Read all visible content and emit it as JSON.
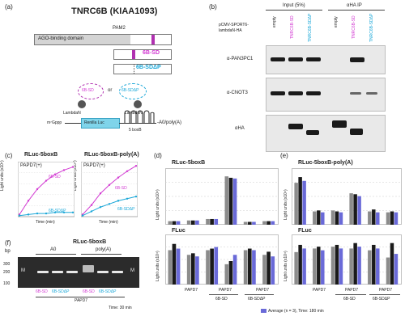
{
  "panel_a": {
    "label": "(a)",
    "title": "TNRC6B (KIAA1093)",
    "domain_label": "AGO-binding domain",
    "pam2_label": "PAM2",
    "construct_6b_sd": "6B-SD",
    "construct_6b_sdap": "6B-SDΔP",
    "tether_left": "6B-SD",
    "tether_or": "or",
    "tether_right": "6B-SDΔP",
    "lambdan_left": "LambdaN",
    "lambdan_right": "LambdaN",
    "boxb_label": "5 boxB",
    "cap_label": "m⁷Gppp",
    "rluc_label": "Renilla Luc",
    "polya_label": "-A0/poly(A)"
  },
  "panel_b": {
    "label": "(b)",
    "input_label": "Input (5%)",
    "ip_label": "αHA IP",
    "vector_label": "pCMV-SPORT6-lambdaN-HA",
    "lanes": [
      "empty",
      "TNRC6B-SD",
      "TNRC6B-SDΔP",
      "empty",
      "TNRC6B-SD",
      "TNRC6B-SDΔP"
    ],
    "blots": [
      "α-PAN3PC1",
      "α-CNOT3",
      "αHA"
    ]
  },
  "panel_c": {
    "label": "(c)",
    "left_title": "RLuc-5boxB",
    "right_title": "RLuc-5boxB-poly(A)",
    "papd7": "PAPD7(+)",
    "series_sd": "6B-SD",
    "series_sdap": "6B-SDΔP",
    "ylabel": "Light units (x10⁵)",
    "xlabel": "Time (min)"
  },
  "panel_d": {
    "label": "(d)",
    "top_title": "RLuc-5boxB",
    "bottom_title": "FLuc",
    "ylabel_top": "Light units (x10⁴)",
    "ylabel_bottom": "Light units (x10⁴)",
    "group_labels": [
      "PAPD7",
      "PAPD7",
      "PAPD7"
    ],
    "construct_labels": [
      "6B-SD",
      "6B-SDΔP"
    ],
    "legend": "Average (n = 3), Time: 180 min"
  },
  "panel_e": {
    "label": "(e)",
    "top_title": "RLuc-5boxB-poly(A)",
    "bottom_title": "FLuc",
    "ylabel_top": "Light units (x10⁴)",
    "ylabel_bottom": "Light units (x10⁴)",
    "group_labels": [
      "PAPD7",
      "PAPD7",
      "PAPD7"
    ],
    "construct_labels": [
      "6B-SD",
      "6B-SDΔP"
    ]
  },
  "panel_f": {
    "label": "(f)",
    "title": "RLuc-5boxB",
    "a0": "A0",
    "polya": "poly(A)",
    "m_left": "M",
    "m_right": "M",
    "bp": "bp",
    "markers": [
      "300",
      "200",
      "100"
    ],
    "sd_left": "6B-SD",
    "sdap_left": "6B-SDΔP",
    "sd_right": "6B-SD",
    "sdap_right": "6B-SDΔP",
    "papd7": "PAPD7",
    "time": "Time: 30 min"
  },
  "colors": {
    "magenta": "#d23ad2",
    "cyan": "#1aa7d8",
    "gray": "#8c8c8c",
    "black": "#1a1a1a",
    "blue": "#6a6ad8"
  },
  "chart_data": [
    {
      "type": "line",
      "title": "RLuc-5boxB",
      "xlabel": "Time (min)",
      "ylabel": "Light units (x10⁵)",
      "x": [
        0,
        30,
        60,
        90,
        120,
        150,
        180
      ],
      "series": [
        {
          "name": "6B-SD",
          "values": [
            0.2,
            1.5,
            2.6,
            3.4,
            4.0,
            4.4,
            4.7
          ]
        },
        {
          "name": "6B-SDΔP",
          "values": [
            0.1,
            0.2,
            0.3,
            0.3,
            0.4,
            0.4,
            0.4
          ]
        }
      ]
    },
    {
      "type": "line",
      "title": "RLuc-5boxB-poly(A)",
      "xlabel": "Time (min)",
      "ylabel": "Light units (x10⁵)",
      "x": [
        0,
        30,
        60,
        90,
        120,
        150,
        180
      ],
      "series": [
        {
          "name": "6B-SD",
          "values": [
            0.2,
            1.1,
            2.2,
            3.0,
            3.7,
            4.3,
            4.8
          ]
        },
        {
          "name": "6B-SDΔP",
          "values": [
            0.1,
            0.5,
            0.9,
            1.2,
            1.5,
            1.7,
            1.9
          ]
        }
      ]
    },
    {
      "type": "bar",
      "title": "RLuc-5boxB",
      "ylabel": "Light units (x10⁴)",
      "series_colors": [
        "#8c8c8c",
        "#1a1a1a",
        "#6a6ad8"
      ],
      "groups": [
        [
          0.5,
          0.5,
          0.5
        ],
        [
          0.6,
          0.6,
          0.6
        ],
        [
          0.8,
          0.8,
          0.8
        ],
        [
          6.8,
          6.6,
          6.5
        ],
        [
          0.4,
          0.4,
          0.4
        ],
        [
          0.5,
          0.5,
          0.5
        ]
      ]
    },
    {
      "type": "bar",
      "title": "FLuc",
      "ylabel": "Light units (x10⁴)",
      "series_colors": [
        "#8c8c8c",
        "#1a1a1a",
        "#6a6ad8"
      ],
      "groups": [
        [
          2.2,
          2.6,
          2.3
        ],
        [
          1.9,
          2.0,
          1.8
        ],
        [
          2.2,
          2.3,
          2.4
        ],
        [
          1.3,
          1.5,
          1.9
        ],
        [
          2.2,
          2.3,
          2.2
        ],
        [
          1.9,
          2.1,
          1.8
        ]
      ]
    },
    {
      "type": "bar",
      "title": "RLuc-5boxB-poly(A)",
      "ylabel": "Light units (x10⁴)",
      "series_colors": [
        "#8c8c8c",
        "#1a1a1a",
        "#6a6ad8"
      ],
      "groups": [
        [
          4.4,
          5.0,
          4.6
        ],
        [
          1.4,
          1.5,
          1.3
        ],
        [
          1.5,
          1.4,
          1.3
        ],
        [
          3.3,
          3.2,
          3.0
        ],
        [
          1.4,
          1.6,
          1.3
        ],
        [
          1.3,
          1.4,
          1.3
        ]
      ]
    },
    {
      "type": "bar",
      "title": "FLuc",
      "ylabel": "Light units (x10⁴)",
      "series_colors": [
        "#8c8c8c",
        "#1a1a1a",
        "#6a6ad8"
      ],
      "groups": [
        [
          1.8,
          2.2,
          2.0
        ],
        [
          2.0,
          2.1,
          1.9
        ],
        [
          2.1,
          2.2,
          2.0
        ],
        [
          2.0,
          2.3,
          2.1
        ],
        [
          1.9,
          2.2,
          2.0
        ],
        [
          1.5,
          2.3,
          1.7
        ]
      ]
    }
  ]
}
